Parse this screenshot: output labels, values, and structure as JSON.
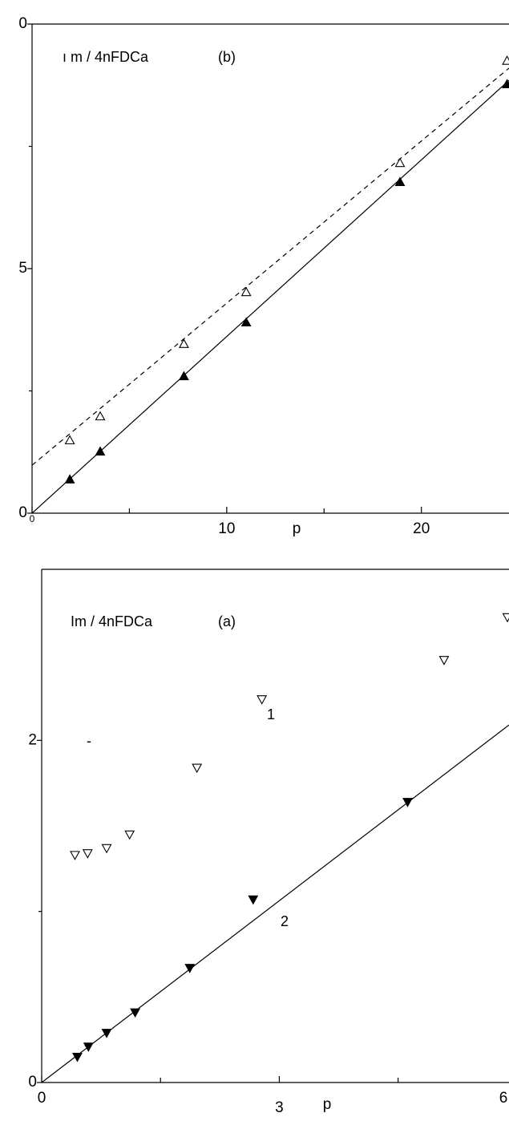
{
  "chart_data": [
    {
      "type": "scatter",
      "x_label": "p",
      "xlim": [
        0,
        24.5
      ],
      "ylim": [
        0,
        10
      ],
      "xticks": [
        0,
        10,
        20
      ],
      "xminorticks": [
        5,
        15
      ],
      "yticks": [
        0,
        5,
        {
          "value": 10,
          "label": "0"
        }
      ],
      "yminorticks": [
        2.5,
        7.5
      ],
      "annotations": [
        {
          "text": "ı m / 4nFDCa"
        },
        {
          "text": "(b)"
        }
      ],
      "series": [
        {
          "marker": "triangle-up",
          "filled": false,
          "color": "#000",
          "x": [
            1.94,
            3.5,
            7.8,
            11.0,
            18.9,
            24.4
          ],
          "values": [
            1.49,
            1.98,
            3.46,
            4.52,
            7.16,
            9.25
          ]
        },
        {
          "marker": "triangle-up",
          "filled": true,
          "color": "#000",
          "x": [
            1.94,
            3.5,
            7.8,
            11.0,
            18.9,
            24.4
          ],
          "values": [
            0.69,
            1.26,
            2.8,
            3.9,
            6.77,
            8.77
          ]
        },
        {
          "line": "dashed",
          "color": "#000",
          "x": [
            0,
            24.5
          ],
          "values": [
            0.98,
            9.1
          ]
        },
        {
          "line": "solid",
          "color": "#000",
          "x": [
            0,
            24.5
          ],
          "values": [
            0,
            8.85
          ]
        }
      ]
    },
    {
      "type": "scatter",
      "x_label": "p",
      "xlim": [
        0,
        5.9
      ],
      "ylim": [
        0,
        3
      ],
      "xticks": [
        0,
        3,
        6
      ],
      "xminorticks": [
        1.5,
        4.5
      ],
      "yticks": [
        0,
        2
      ],
      "yminorticks": [
        1
      ],
      "annotations": [
        {
          "text": "Im / 4nFDCa"
        },
        {
          "text": "(a)"
        },
        {
          "text": "1"
        },
        {
          "text": "2"
        },
        {
          "text": "-"
        }
      ],
      "series": [
        {
          "marker": "triangle-down",
          "filled": false,
          "color": "#000",
          "x": [
            0.42,
            0.58,
            0.82,
            1.11,
            1.96,
            2.78,
            5.08,
            5.88
          ],
          "values": [
            1.33,
            1.34,
            1.37,
            1.45,
            1.84,
            2.24,
            2.47,
            2.72
          ]
        },
        {
          "marker": "triangle-down",
          "filled": true,
          "color": "#000",
          "x": [
            0.45,
            0.59,
            0.82,
            1.18,
            1.87,
            2.67,
            4.62
          ],
          "values": [
            0.15,
            0.21,
            0.29,
            0.41,
            0.67,
            1.07,
            1.64
          ]
        },
        {
          "line": "solid",
          "color": "#000",
          "x": [
            0,
            5.9
          ],
          "values": [
            0,
            2.09
          ]
        }
      ]
    }
  ]
}
